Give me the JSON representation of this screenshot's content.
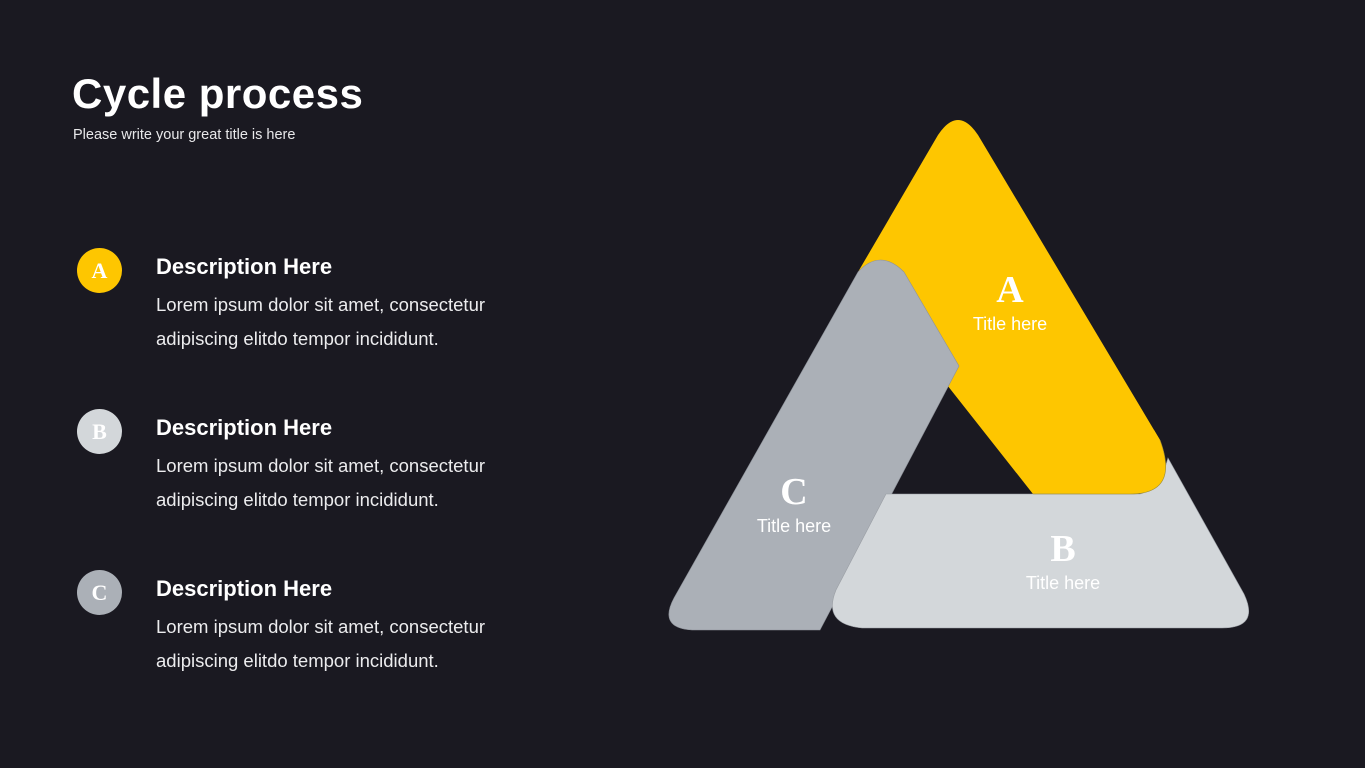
{
  "header": {
    "title": "Cycle process",
    "subtitle": "Please write your great title is here"
  },
  "colors": {
    "background": "#1a1921",
    "a": "#fec600",
    "b": "#d3d7da",
    "c": "#abb0b7"
  },
  "items": [
    {
      "letter": "A",
      "title": "Description Here",
      "text": "Lorem ipsum dolor sit amet, consectetur adipiscing elitdo tempor incididunt.",
      "color": "#fec600"
    },
    {
      "letter": "B",
      "title": "Description Here",
      "text": "Lorem ipsum dolor sit amet, consectetur adipiscing elitdo tempor incididunt.",
      "color": "#d3d7da"
    },
    {
      "letter": "C",
      "title": "Description Here",
      "text": "Lorem ipsum dolor sit amet, consectetur adipiscing elitdo tempor incididunt.",
      "color": "#abb0b7"
    }
  ],
  "diagram": {
    "segments": [
      {
        "letter": "A",
        "title": "Title here"
      },
      {
        "letter": "B",
        "title": "Title here"
      },
      {
        "letter": "C",
        "title": "Title here"
      }
    ]
  }
}
